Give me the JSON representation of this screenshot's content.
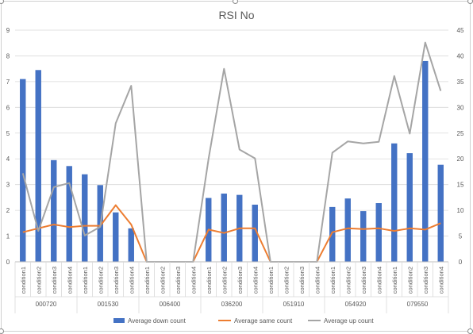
{
  "chart_data": {
    "type": "bar",
    "title": "RSI No",
    "groups": [
      {
        "label": "000720",
        "items": [
          "condition1",
          "condition2",
          "condition3",
          "condition4"
        ]
      },
      {
        "label": "001530",
        "items": [
          "condition1",
          "condition2",
          "condition3",
          "condition4"
        ]
      },
      {
        "label": "006400",
        "items": [
          "condition1",
          "condition2",
          "condition3",
          "condition4"
        ]
      },
      {
        "label": "036200",
        "items": [
          "condition1",
          "condition2",
          "condition3",
          "condition4"
        ]
      },
      {
        "label": "051910",
        "items": [
          "condition1",
          "condition2",
          "condition3",
          "condition4"
        ]
      },
      {
        "label": "054920",
        "items": [
          "condition1",
          "condition2",
          "condition3",
          "condition4"
        ]
      },
      {
        "label": "079550",
        "items": [
          "condition1",
          "condition2",
          "condition3",
          "condition4"
        ]
      }
    ],
    "y_left": {
      "min": 0,
      "max": 9,
      "ticks": [
        0,
        1,
        2,
        3,
        4,
        5,
        6,
        7,
        8,
        9
      ]
    },
    "y_right": {
      "min": 0,
      "max": 45,
      "ticks": [
        0,
        5,
        10,
        15,
        20,
        25,
        30,
        35,
        40,
        45
      ]
    },
    "grid": true,
    "legend_position": "bottom",
    "series": [
      {
        "name": "Average down count",
        "kind": "bar",
        "axis": "left",
        "color": "#4472c4",
        "values": [
          7.1,
          7.45,
          3.95,
          3.72,
          3.4,
          2.98,
          1.92,
          1.3,
          0,
          0,
          0,
          0,
          2.48,
          2.65,
          2.6,
          2.22,
          0,
          0,
          0,
          0,
          2.13,
          2.46,
          1.97,
          2.28,
          4.6,
          4.22,
          7.8,
          3.77
        ]
      },
      {
        "name": "Average same count",
        "kind": "line",
        "axis": "left",
        "color": "#ed7d31",
        "values": [
          1.15,
          1.3,
          1.45,
          1.35,
          1.4,
          1.4,
          2.2,
          1.45,
          0,
          0,
          0,
          0,
          1.25,
          1.12,
          1.3,
          1.3,
          0,
          0,
          0,
          0,
          1.15,
          1.3,
          1.27,
          1.3,
          1.2,
          1.3,
          1.25,
          1.5
        ]
      },
      {
        "name": "Average up count",
        "kind": "line",
        "axis": "right",
        "color": "#a5a5a5",
        "values": [
          17.2,
          6.0,
          14.5,
          15.3,
          5.1,
          6.8,
          26.9,
          34.2,
          0,
          0,
          0,
          0,
          20.0,
          37.5,
          21.8,
          20.1,
          0,
          0,
          0,
          0,
          21.2,
          23.4,
          23.0,
          23.3,
          36.1,
          24.9,
          42.6,
          33.2
        ]
      }
    ]
  }
}
